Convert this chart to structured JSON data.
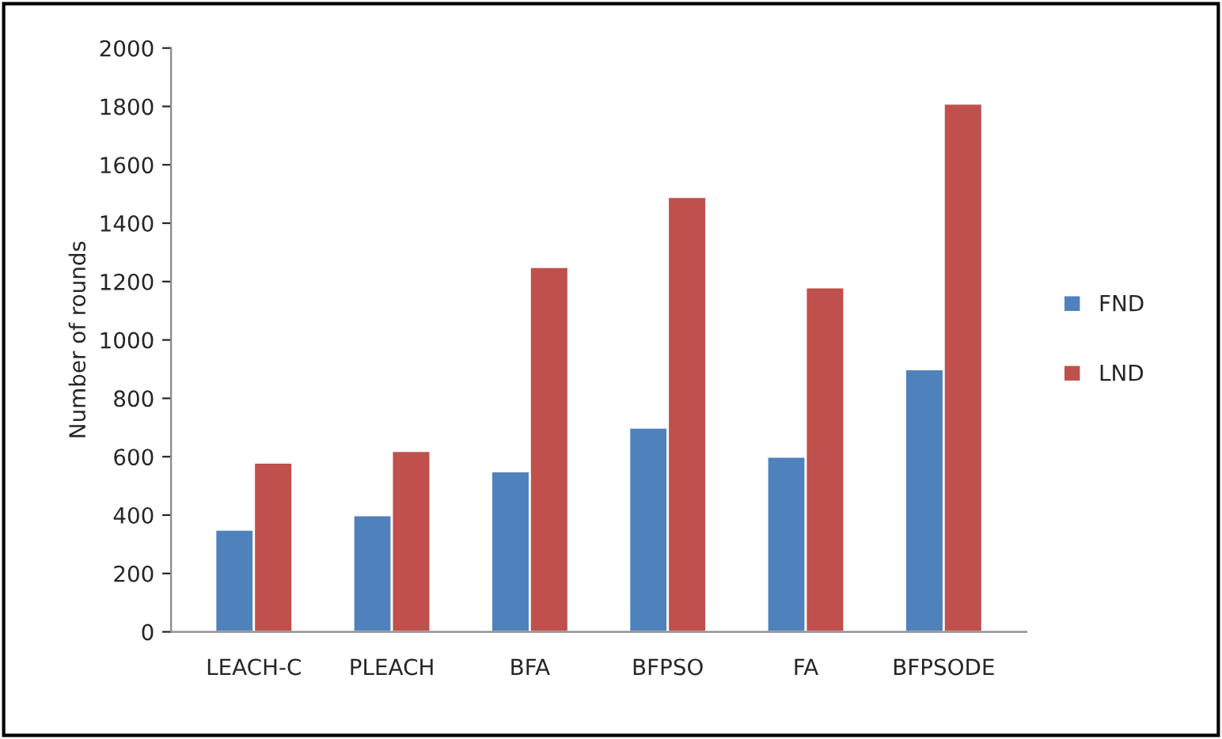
{
  "chart_data": {
    "type": "bar",
    "ylabel": "Number of rounds",
    "categories": [
      "LEACH-C",
      "PLEACH",
      "BFA",
      "BFPSO",
      "FA",
      "BFPSODE"
    ],
    "series": [
      {
        "name": "FND",
        "color": "#4f81bd",
        "values": [
          350,
          400,
          550,
          700,
          600,
          900
        ]
      },
      {
        "name": "LND",
        "color": "#c0504d",
        "values": [
          580,
          620,
          1250,
          1490,
          1180,
          1810
        ]
      }
    ],
    "ylim": [
      0,
      2000
    ],
    "yticks": [
      0,
      200,
      400,
      600,
      800,
      1000,
      1200,
      1400,
      1600,
      1800,
      2000
    ],
    "grid": false,
    "legend": "right"
  }
}
